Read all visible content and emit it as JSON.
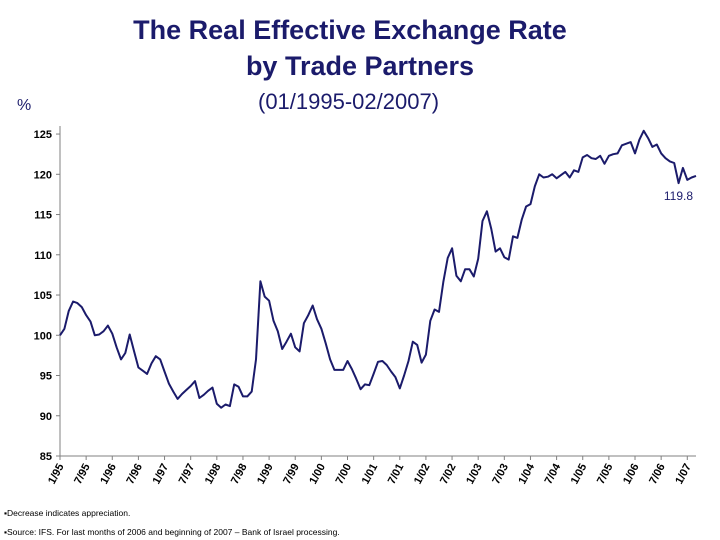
{
  "chart_data": {
    "type": "line",
    "title": "The Real Effective Exchange Rate by Trade Partners",
    "title_lines": [
      "The Real Effective Exchange Rate",
      "by Trade Partners"
    ],
    "subtitle": "(01/1995-02/2007)",
    "ylabel": "%",
    "ylim": [
      85,
      126
    ],
    "yticks": [
      85,
      90,
      95,
      100,
      105,
      110,
      115,
      120,
      125
    ],
    "xlim": [
      0,
      146
    ],
    "x_tick_labels": [
      "1/95",
      "7/95",
      "1/96",
      "7/96",
      "1/97",
      "7/97",
      "1/98",
      "7/98",
      "1/99",
      "7/99",
      "1/00",
      "7/00",
      "1/01",
      "7/01",
      "1/02",
      "7/02",
      "1/03",
      "7/03",
      "1/04",
      "7/04",
      "1/05",
      "7/05",
      "1/06",
      "7/06",
      "1/07"
    ],
    "grid": false,
    "line_color": "#1b1b6b",
    "end_label": "119.8",
    "series": [
      {
        "name": "",
        "values": [
          100.0,
          100.8,
          103.0,
          104.2,
          104.0,
          103.5,
          102.5,
          101.7,
          100.0,
          100.1,
          100.5,
          101.2,
          100.2,
          98.5,
          97.0,
          97.8,
          100.1,
          98.0,
          96.0,
          95.6,
          95.2,
          96.5,
          97.4,
          97.0,
          95.5,
          94.0,
          93.0,
          92.1,
          92.7,
          93.2,
          93.7,
          94.3,
          92.2,
          92.6,
          93.1,
          93.5,
          91.5,
          91.0,
          91.4,
          91.2,
          93.9,
          93.6,
          92.4,
          92.4,
          93.0,
          97.0,
          106.7,
          104.8,
          104.3,
          101.8,
          100.5,
          98.3,
          99.2,
          100.2,
          98.5,
          98.0,
          101.5,
          102.5,
          103.7,
          102.0,
          100.8,
          99.0,
          97.0,
          95.7,
          95.7,
          95.7,
          96.8,
          95.8,
          94.6,
          93.3,
          93.9,
          93.8,
          95.2,
          96.7,
          96.8,
          96.3,
          95.5,
          94.8,
          93.4,
          95.0,
          96.8,
          99.2,
          98.8,
          96.6,
          97.6,
          101.8,
          103.2,
          102.9,
          106.6,
          109.6,
          110.8,
          107.4,
          106.7,
          108.2,
          108.2,
          107.3,
          109.5,
          114.2,
          115.4,
          113.2,
          110.4,
          110.8,
          109.7,
          109.4,
          112.3,
          112.1,
          114.4,
          116.0,
          116.3,
          118.5,
          120.0,
          119.6,
          119.7,
          120.0,
          119.5,
          119.9,
          120.3,
          119.6,
          120.5,
          120.3,
          122.1,
          122.4,
          122.0,
          121.9,
          122.3,
          121.3,
          122.3,
          122.5,
          122.6,
          123.6,
          123.8,
          124.0,
          122.6,
          124.3,
          125.4,
          124.5,
          123.4,
          123.7,
          122.6,
          122.0,
          121.6,
          121.4,
          118.9,
          120.8,
          119.3,
          119.6,
          119.8
        ]
      }
    ]
  },
  "footnotes": [
    "▪Decrease indicates appreciation.",
    "▪Source: IFS. For last months of 2006 and beginning of 2007 – Bank of Israel processing."
  ]
}
